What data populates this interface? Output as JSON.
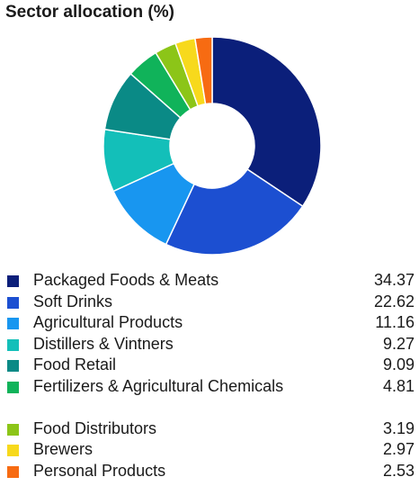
{
  "chart_data": {
    "type": "pie",
    "title": "Sector allocation (%)",
    "categories": [
      "Packaged Foods & Meats",
      "Soft Drinks",
      "Agricultural Products",
      "Distillers & Vintners",
      "Food Retail",
      "Fertilizers & Agricultural Chemicals",
      "Food Distributors",
      "Brewers",
      "Personal Products"
    ],
    "values": [
      34.37,
      22.62,
      11.16,
      9.27,
      9.09,
      4.81,
      3.19,
      2.97,
      2.53
    ],
    "value_labels": [
      "34.37",
      "22.62",
      "11.16",
      "9.27",
      "9.09",
      "4.81",
      "3.19",
      "2.97",
      "2.53"
    ],
    "colors": [
      "#0b1f7a",
      "#1c4fd1",
      "#1896f0",
      "#13bfb9",
      "#0a8a86",
      "#10b35a",
      "#8cc518",
      "#f7d91c",
      "#f76b12"
    ],
    "donut": true,
    "legend_position": "bottom"
  }
}
